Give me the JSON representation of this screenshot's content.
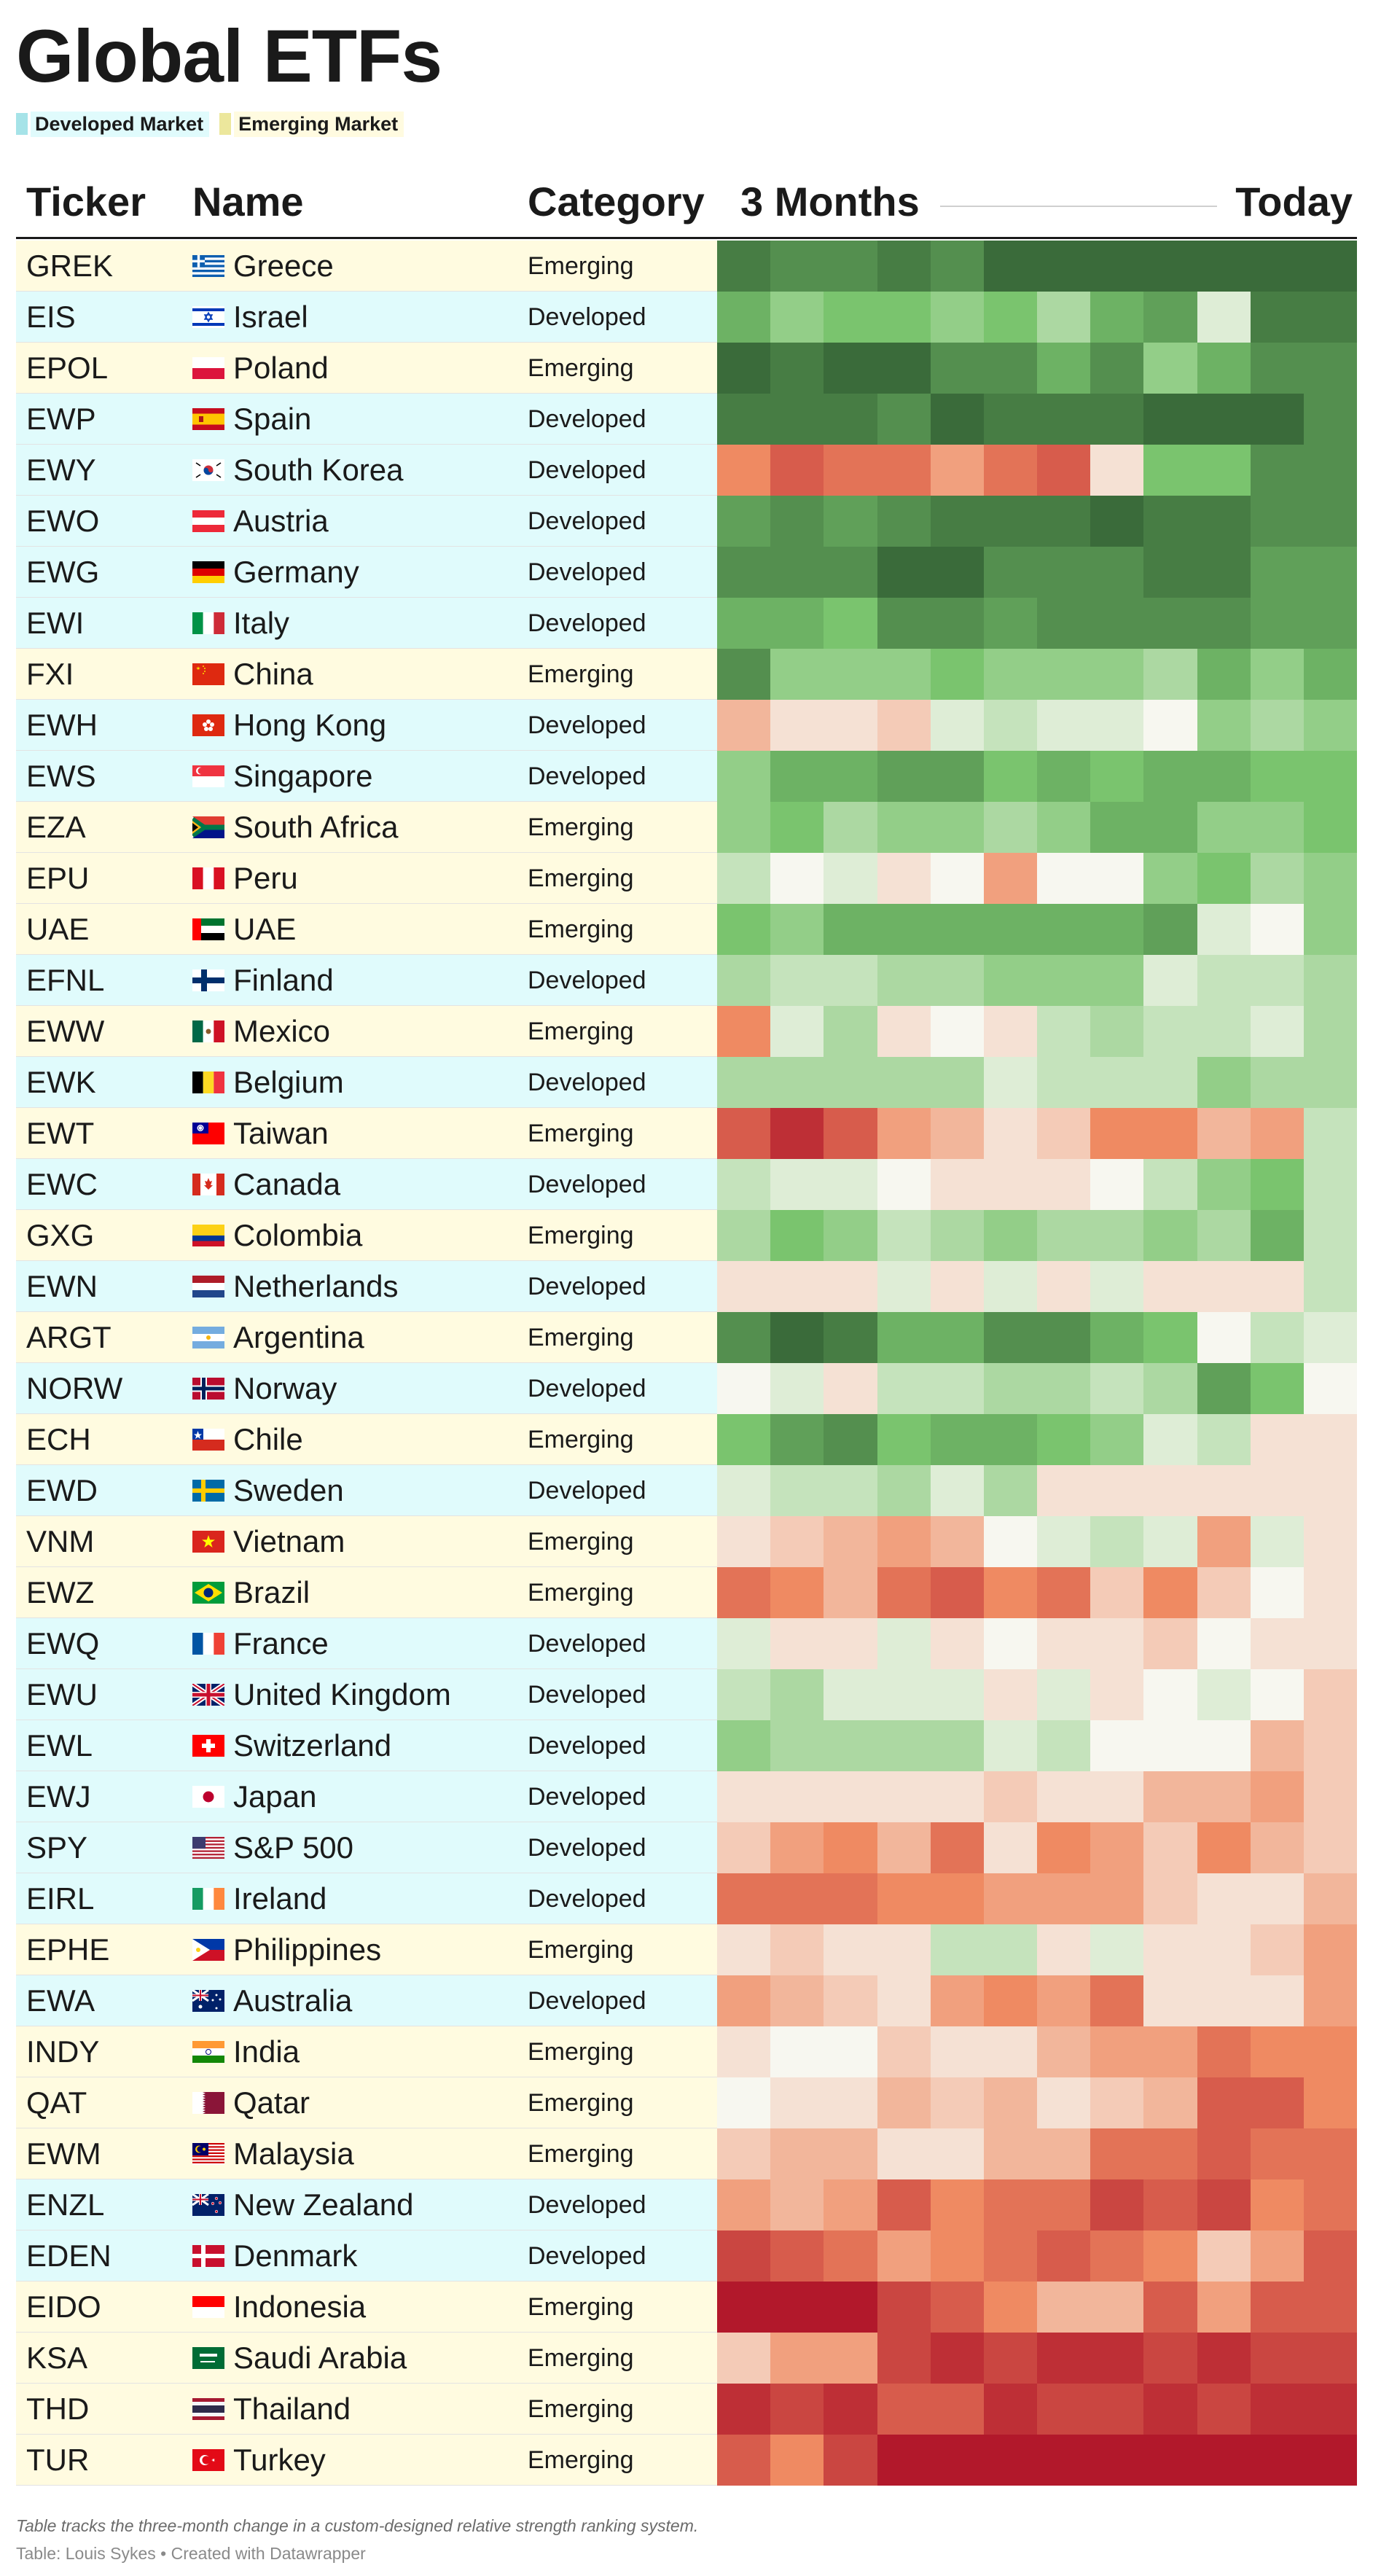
{
  "title": "Global ETFs",
  "legend": [
    {
      "label": "Developed Market",
      "color": "#e0fbfc",
      "swatch": "#a6e3e8"
    },
    {
      "label": "Emerging Market",
      "color": "#fffbe0",
      "swatch": "#ece79c"
    }
  ],
  "headers": {
    "ticker": "Ticker",
    "name": "Name",
    "category": "Category",
    "start": "3 Months",
    "end": "Today"
  },
  "category_colors": {
    "Developed": "#e0fbfc",
    "Emerging": "#fffbe0"
  },
  "scale": {
    "min": -10,
    "max": 10,
    "low_color": "#b2182b",
    "mid_color": "#f7f7f0",
    "high_color": "#3a6b3a"
  },
  "chart_data": {
    "type": "heatmap",
    "title": "Global ETFs",
    "x": [
      "3 Months",
      "",
      "",
      "",
      "",
      "",
      "",
      "",
      "",
      "",
      "",
      "Today"
    ],
    "rows": [
      {
        "ticker": "GREK",
        "name": "Greece",
        "flag": "greece-flag",
        "category": "Emerging",
        "values": [
          9,
          8,
          8,
          9,
          8,
          10,
          10,
          10,
          10,
          10,
          10,
          10
        ]
      },
      {
        "ticker": "EIS",
        "name": "Israel",
        "flag": "israel-flag",
        "category": "Developed",
        "values": [
          6,
          4,
          5,
          5,
          4,
          5,
          3,
          6,
          7,
          1,
          9,
          9
        ]
      },
      {
        "ticker": "EPOL",
        "name": "Poland",
        "flag": "poland-flag",
        "category": "Emerging",
        "values": [
          10,
          9,
          10,
          10,
          8,
          8,
          6,
          8,
          4,
          6,
          8,
          8
        ]
      },
      {
        "ticker": "EWP",
        "name": "Spain",
        "flag": "spain-flag",
        "category": "Developed",
        "values": [
          9,
          9,
          9,
          8,
          10,
          9,
          9,
          9,
          10,
          10,
          10,
          8
        ]
      },
      {
        "ticker": "EWY",
        "name": "South Korea",
        "flag": "south-korea-flag",
        "category": "Developed",
        "values": [
          -5,
          -7,
          -6,
          -6,
          -4,
          -6,
          -7,
          -1,
          5,
          5,
          8,
          8
        ]
      },
      {
        "ticker": "EWO",
        "name": "Austria",
        "flag": "austria-flag",
        "category": "Developed",
        "values": [
          7,
          8,
          7,
          8,
          9,
          9,
          9,
          10,
          9,
          9,
          8,
          8
        ]
      },
      {
        "ticker": "EWG",
        "name": "Germany",
        "flag": "germany-flag",
        "category": "Developed",
        "values": [
          8,
          8,
          8,
          10,
          10,
          8,
          8,
          8,
          9,
          9,
          7,
          7
        ]
      },
      {
        "ticker": "EWI",
        "name": "Italy",
        "flag": "italy-flag",
        "category": "Developed",
        "values": [
          6,
          6,
          5,
          8,
          8,
          7,
          8,
          8,
          8,
          8,
          7,
          7
        ]
      },
      {
        "ticker": "FXI",
        "name": "China",
        "flag": "china-flag",
        "category": "Emerging",
        "values": [
          8,
          4,
          4,
          4,
          5,
          4,
          4,
          4,
          3,
          6,
          4,
          6
        ]
      },
      {
        "ticker": "EWH",
        "name": "Hong Kong",
        "flag": "hong-kong-flag",
        "category": "Developed",
        "values": [
          -3,
          -1,
          -1,
          -2,
          1,
          2,
          1,
          1,
          0,
          4,
          3,
          4
        ]
      },
      {
        "ticker": "EWS",
        "name": "Singapore",
        "flag": "singapore-flag",
        "category": "Developed",
        "values": [
          4,
          6,
          6,
          7,
          7,
          5,
          6,
          5,
          6,
          6,
          5,
          5
        ]
      },
      {
        "ticker": "EZA",
        "name": "South Africa",
        "flag": "south-africa-flag",
        "category": "Emerging",
        "values": [
          4,
          5,
          3,
          4,
          4,
          3,
          4,
          6,
          6,
          4,
          4,
          5
        ]
      },
      {
        "ticker": "EPU",
        "name": "Peru",
        "flag": "peru-flag",
        "category": "Emerging",
        "values": [
          2,
          0,
          1,
          -1,
          0,
          -4,
          0,
          0,
          4,
          5,
          3,
          4
        ]
      },
      {
        "ticker": "UAE",
        "name": "UAE",
        "flag": "uae-flag",
        "category": "Emerging",
        "values": [
          5,
          4,
          6,
          6,
          6,
          6,
          6,
          6,
          7,
          1,
          0,
          4
        ]
      },
      {
        "ticker": "EFNL",
        "name": "Finland",
        "flag": "finland-flag",
        "category": "Developed",
        "values": [
          3,
          2,
          2,
          3,
          3,
          4,
          4,
          4,
          1,
          2,
          2,
          3
        ]
      },
      {
        "ticker": "EWW",
        "name": "Mexico",
        "flag": "mexico-flag",
        "category": "Emerging",
        "values": [
          -5,
          1,
          3,
          -1,
          0,
          -1,
          2,
          3,
          2,
          2,
          1,
          3
        ]
      },
      {
        "ticker": "EWK",
        "name": "Belgium",
        "flag": "belgium-flag",
        "category": "Developed",
        "values": [
          3,
          3,
          3,
          3,
          3,
          1,
          2,
          2,
          2,
          4,
          3,
          3
        ]
      },
      {
        "ticker": "EWT",
        "name": "Taiwan",
        "flag": "taiwan-flag",
        "category": "Emerging",
        "values": [
          -7,
          -9,
          -7,
          -4,
          -3,
          -1,
          -2,
          -5,
          -5,
          -3,
          -4,
          2
        ]
      },
      {
        "ticker": "EWC",
        "name": "Canada",
        "flag": "canada-flag",
        "category": "Developed",
        "values": [
          2,
          1,
          1,
          0,
          -1,
          -1,
          -1,
          0,
          2,
          4,
          5,
          2
        ]
      },
      {
        "ticker": "GXG",
        "name": "Colombia",
        "flag": "colombia-flag",
        "category": "Emerging",
        "values": [
          3,
          5,
          4,
          2,
          3,
          4,
          3,
          3,
          4,
          3,
          6,
          2
        ]
      },
      {
        "ticker": "EWN",
        "name": "Netherlands",
        "flag": "netherlands-flag",
        "category": "Developed",
        "values": [
          -1,
          -1,
          -1,
          1,
          -1,
          1,
          -1,
          1,
          -1,
          -1,
          -1,
          2
        ]
      },
      {
        "ticker": "ARGT",
        "name": "Argentina",
        "flag": "argentina-flag",
        "category": "Emerging",
        "values": [
          8,
          10,
          9,
          6,
          6,
          8,
          8,
          6,
          5,
          0,
          2,
          1
        ]
      },
      {
        "ticker": "NORW",
        "name": "Norway",
        "flag": "norway-flag",
        "category": "Developed",
        "values": [
          0,
          1,
          -1,
          2,
          2,
          3,
          3,
          2,
          3,
          7,
          5,
          0
        ]
      },
      {
        "ticker": "ECH",
        "name": "Chile",
        "flag": "chile-flag",
        "category": "Emerging",
        "values": [
          5,
          7,
          8,
          5,
          6,
          6,
          5,
          4,
          1,
          2,
          -1,
          -1
        ]
      },
      {
        "ticker": "EWD",
        "name": "Sweden",
        "flag": "sweden-flag",
        "category": "Developed",
        "values": [
          1,
          2,
          2,
          3,
          1,
          3,
          -1,
          -1,
          -1,
          -1,
          -1,
          -1
        ]
      },
      {
        "ticker": "VNM",
        "name": "Vietnam",
        "flag": "vietnam-flag",
        "category": "Emerging",
        "values": [
          -1,
          -2,
          -3,
          -4,
          -3,
          0,
          1,
          2,
          1,
          -4,
          1,
          -1
        ]
      },
      {
        "ticker": "EWZ",
        "name": "Brazil",
        "flag": "brazil-flag",
        "category": "Emerging",
        "values": [
          -6,
          -5,
          -3,
          -6,
          -7,
          -5,
          -6,
          -2,
          -5,
          -2,
          0,
          -1
        ]
      },
      {
        "ticker": "EWQ",
        "name": "France",
        "flag": "france-flag",
        "category": "Developed",
        "values": [
          1,
          -1,
          -1,
          1,
          -1,
          0,
          -1,
          -1,
          -2,
          0,
          -1,
          -1
        ]
      },
      {
        "ticker": "EWU",
        "name": "United Kingdom",
        "flag": "united-kingdom-flag",
        "category": "Developed",
        "values": [
          2,
          3,
          1,
          1,
          1,
          -1,
          1,
          -1,
          0,
          1,
          0,
          -2
        ]
      },
      {
        "ticker": "EWL",
        "name": "Switzerland",
        "flag": "switzerland-flag",
        "category": "Developed",
        "values": [
          4,
          3,
          3,
          3,
          3,
          1,
          2,
          0,
          0,
          0,
          -3,
          -2
        ]
      },
      {
        "ticker": "EWJ",
        "name": "Japan",
        "flag": "japan-flag",
        "category": "Developed",
        "values": [
          -1,
          -1,
          -1,
          -1,
          -1,
          -2,
          -1,
          -1,
          -3,
          -3,
          -4,
          -2
        ]
      },
      {
        "ticker": "SPY",
        "name": "S&P 500",
        "flag": "usa-flag",
        "category": "Developed",
        "values": [
          -2,
          -4,
          -5,
          -3,
          -6,
          -1,
          -5,
          -4,
          -2,
          -5,
          -3,
          -2
        ]
      },
      {
        "ticker": "EIRL",
        "name": "Ireland",
        "flag": "ireland-flag",
        "category": "Developed",
        "values": [
          -6,
          -6,
          -6,
          -5,
          -5,
          -4,
          -4,
          -4,
          -2,
          -1,
          -1,
          -3
        ]
      },
      {
        "ticker": "EPHE",
        "name": "Philippines",
        "flag": "philippines-flag",
        "category": "Emerging",
        "values": [
          -1,
          -2,
          -1,
          -1,
          2,
          2,
          -1,
          1,
          -1,
          -1,
          -2,
          -4
        ]
      },
      {
        "ticker": "EWA",
        "name": "Australia",
        "flag": "australia-flag",
        "category": "Developed",
        "values": [
          -4,
          -3,
          -2,
          -1,
          -4,
          -5,
          -4,
          -6,
          -1,
          -1,
          -1,
          -4
        ]
      },
      {
        "ticker": "INDY",
        "name": "India",
        "flag": "india-flag",
        "category": "Emerging",
        "values": [
          -1,
          0,
          0,
          -2,
          -1,
          -1,
          -3,
          -4,
          -4,
          -6,
          -5,
          -5
        ]
      },
      {
        "ticker": "QAT",
        "name": "Qatar",
        "flag": "qatar-flag",
        "category": "Emerging",
        "values": [
          0,
          -1,
          -1,
          -3,
          -2,
          -3,
          -1,
          -2,
          -3,
          -7,
          -7,
          -5
        ]
      },
      {
        "ticker": "EWM",
        "name": "Malaysia",
        "flag": "malaysia-flag",
        "category": "Emerging",
        "values": [
          -2,
          -3,
          -3,
          -1,
          -1,
          -3,
          -3,
          -6,
          -6,
          -7,
          -6,
          -6
        ]
      },
      {
        "ticker": "ENZL",
        "name": "New Zealand",
        "flag": "new-zealand-flag",
        "category": "Developed",
        "values": [
          -4,
          -3,
          -4,
          -7,
          -5,
          -6,
          -6,
          -8,
          -7,
          -8,
          -5,
          -6
        ]
      },
      {
        "ticker": "EDEN",
        "name": "Denmark",
        "flag": "denmark-flag",
        "category": "Developed",
        "values": [
          -8,
          -7,
          -6,
          -4,
          -5,
          -6,
          -7,
          -6,
          -5,
          -2,
          -4,
          -7
        ]
      },
      {
        "ticker": "EIDO",
        "name": "Indonesia",
        "flag": "indonesia-flag",
        "category": "Emerging",
        "values": [
          -10,
          -10,
          -10,
          -8,
          -7,
          -5,
          -3,
          -3,
          -7,
          -4,
          -7,
          -7
        ]
      },
      {
        "ticker": "KSA",
        "name": "Saudi Arabia",
        "flag": "saudi-arabia-flag",
        "category": "Emerging",
        "values": [
          -2,
          -4,
          -4,
          -8,
          -9,
          -8,
          -9,
          -9,
          -8,
          -9,
          -8,
          -8
        ]
      },
      {
        "ticker": "THD",
        "name": "Thailand",
        "flag": "thailand-flag",
        "category": "Emerging",
        "values": [
          -9,
          -8,
          -9,
          -7,
          -7,
          -9,
          -8,
          -8,
          -9,
          -8,
          -9,
          -9
        ]
      },
      {
        "ticker": "TUR",
        "name": "Turkey",
        "flag": "turkey-flag",
        "category": "Emerging",
        "values": [
          -7,
          -5,
          -8,
          -10,
          -10,
          -10,
          -10,
          -10,
          -10,
          -10,
          -10,
          -10
        ]
      }
    ]
  },
  "notes": "Table tracks the three-month change in a custom-designed relative strength ranking system.",
  "source": "Table: Louis Sykes • Created with Datawrapper"
}
